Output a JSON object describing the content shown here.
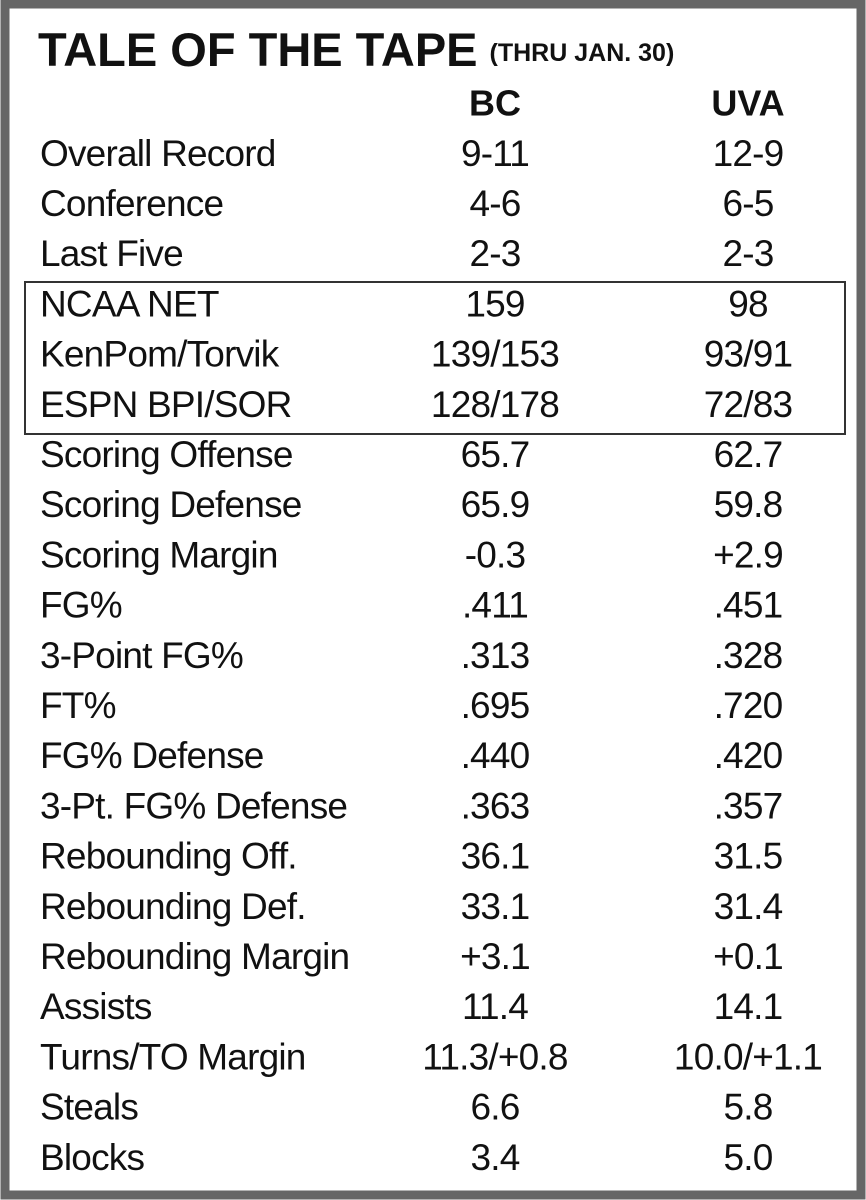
{
  "header": {
    "title": "TALE OF THE TAPE",
    "subtitle": "(THRU JAN. 30)"
  },
  "table": {
    "columns": [
      "BC",
      "UVA"
    ],
    "rows": [
      [
        "Overall Record",
        "9-11",
        "12-9"
      ],
      [
        "Conference",
        "4-6",
        "6-5"
      ],
      [
        "Last Five",
        "2-3",
        "2-3"
      ],
      [
        "NCAA NET",
        "159",
        "98"
      ],
      [
        "KenPom/Torvik",
        "139/153",
        "93/91"
      ],
      [
        "ESPN BPI/SOR",
        "128/178",
        "72/83"
      ],
      [
        "Scoring Offense",
        "65.7",
        "62.7"
      ],
      [
        "Scoring Defense",
        "65.9",
        "59.8"
      ],
      [
        "Scoring Margin",
        "-0.3",
        "+2.9"
      ],
      [
        "FG%",
        ".411",
        ".451"
      ],
      [
        "3-Point FG%",
        ".313",
        ".328"
      ],
      [
        "FT%",
        ".695",
        ".720"
      ],
      [
        "FG% Defense",
        ".440",
        ".420"
      ],
      [
        "3-Pt. FG% Defense",
        ".363",
        ".357"
      ],
      [
        "Rebounding Off.",
        "36.1",
        "31.5"
      ],
      [
        "Rebounding Def.",
        "33.1",
        "31.4"
      ],
      [
        "Rebounding Margin",
        "+3.1",
        "+0.1"
      ],
      [
        "Assists",
        "11.4",
        "14.1"
      ],
      [
        "Turns/TO Margin",
        "11.3/+0.8",
        "10.0/+1.1"
      ],
      [
        "Steals",
        "6.6",
        "5.8"
      ],
      [
        "Blocks",
        "3.4",
        "5.0"
      ]
    ]
  }
}
